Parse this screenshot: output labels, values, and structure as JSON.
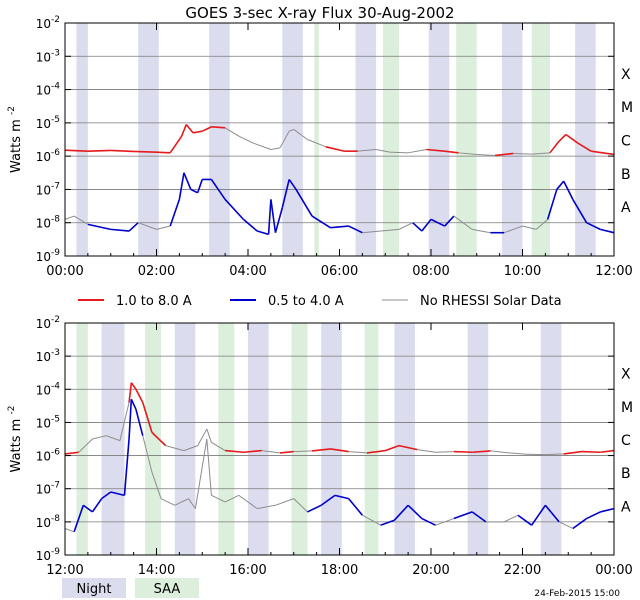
{
  "chart_data": {
    "type": "line",
    "title": "GOES 3-sec X-ray Flux   30-Aug-2002",
    "ylabel": "Watts m",
    "ylabel_exp": "-2",
    "yscale": "log",
    "ylim_exp": [
      -9,
      -2
    ],
    "y_tick_base": "10",
    "y_tick_exps": [
      "-9",
      "-8",
      "-7",
      "-6",
      "-5",
      "-4",
      "-3",
      "-2"
    ],
    "flare_classes": [
      {
        "label": "A",
        "exp": -8
      },
      {
        "label": "B",
        "exp": -7
      },
      {
        "label": "C",
        "exp": -6
      },
      {
        "label": "M",
        "exp": -5
      },
      {
        "label": "X",
        "exp": -4
      }
    ],
    "series_meta": [
      {
        "name": "1.0 to 8.0 A",
        "color": "#e41a1c"
      },
      {
        "name": "0.5 to 4.0 A",
        "color": "#0000cc"
      },
      {
        "name": "No RHESSI Solar Data",
        "color": "#8c8c8c"
      }
    ],
    "shading_legend": [
      {
        "name": "Night",
        "color": "#dcdcef"
      },
      {
        "name": "SAA",
        "color": "#dcefdc"
      }
    ],
    "footer_date": "24-Feb-2015 15:00",
    "panels": [
      {
        "id": "top",
        "xlim_h": [
          0,
          12
        ],
        "x_ticks": [
          "00:00",
          "02:00",
          "04:00",
          "06:00",
          "08:00",
          "10:00",
          "12:00"
        ],
        "night": [
          [
            0.25,
            0.5
          ],
          [
            1.6,
            2.05
          ],
          [
            3.15,
            3.6
          ],
          [
            4.75,
            5.2
          ],
          [
            6.35,
            6.8
          ],
          [
            7.95,
            8.4
          ],
          [
            9.55,
            10.0
          ],
          [
            11.15,
            11.6
          ]
        ],
        "saa": [
          [
            5.45,
            5.55
          ],
          [
            6.95,
            7.3
          ],
          [
            8.55,
            9.0
          ],
          [
            10.2,
            10.6
          ]
        ],
        "long": [
          [
            0,
            -5.82,
            "r"
          ],
          [
            0.5,
            -5.85,
            "r"
          ],
          [
            1.0,
            -5.83,
            "r"
          ],
          [
            1.5,
            -5.86,
            "r"
          ],
          [
            2.0,
            -5.88,
            "r"
          ],
          [
            2.3,
            -5.9,
            "r"
          ],
          [
            2.55,
            -5.4,
            "r"
          ],
          [
            2.65,
            -5.05,
            "r"
          ],
          [
            2.8,
            -5.3,
            "r"
          ],
          [
            3.0,
            -5.25,
            "r"
          ],
          [
            3.2,
            -5.12,
            "r"
          ],
          [
            3.5,
            -5.15,
            "g"
          ],
          [
            3.8,
            -5.4,
            "g"
          ],
          [
            4.1,
            -5.6,
            "g"
          ],
          [
            4.5,
            -5.8,
            "g"
          ],
          [
            4.7,
            -5.75,
            "g"
          ],
          [
            4.9,
            -5.25,
            "g"
          ],
          [
            5.0,
            -5.2,
            "g"
          ],
          [
            5.3,
            -5.5,
            "g"
          ],
          [
            5.7,
            -5.72,
            "r"
          ],
          [
            6.1,
            -5.85,
            "r"
          ],
          [
            6.4,
            -5.85,
            "g"
          ],
          [
            6.8,
            -5.8,
            "g"
          ],
          [
            7.1,
            -5.88,
            "g"
          ],
          [
            7.5,
            -5.9,
            "g"
          ],
          [
            7.9,
            -5.8,
            "r"
          ],
          [
            8.3,
            -5.85,
            "r"
          ],
          [
            8.6,
            -5.9,
            "g"
          ],
          [
            9.0,
            -5.95,
            "g"
          ],
          [
            9.4,
            -5.98,
            "r"
          ],
          [
            9.8,
            -5.92,
            "g"
          ],
          [
            10.2,
            -5.94,
            "g"
          ],
          [
            10.6,
            -5.9,
            "r"
          ],
          [
            10.8,
            -5.55,
            "r"
          ],
          [
            10.95,
            -5.35,
            "r"
          ],
          [
            11.2,
            -5.6,
            "r"
          ],
          [
            11.5,
            -5.85,
            "r"
          ],
          [
            12.0,
            -5.95,
            "r"
          ]
        ],
        "short": [
          [
            0,
            -7.9,
            "g"
          ],
          [
            0.2,
            -7.8,
            "g"
          ],
          [
            0.5,
            -8.05,
            "b"
          ],
          [
            1.0,
            -8.2,
            "b"
          ],
          [
            1.4,
            -8.25,
            "b"
          ],
          [
            1.6,
            -8.0,
            "g"
          ],
          [
            2.0,
            -8.2,
            "g"
          ],
          [
            2.3,
            -8.1,
            "b"
          ],
          [
            2.5,
            -7.3,
            "b"
          ],
          [
            2.6,
            -6.5,
            "b"
          ],
          [
            2.75,
            -7.0,
            "b"
          ],
          [
            2.9,
            -7.1,
            "b"
          ],
          [
            3.0,
            -6.7,
            "b"
          ],
          [
            3.2,
            -6.7,
            "b"
          ],
          [
            3.5,
            -7.3,
            "b"
          ],
          [
            3.9,
            -7.9,
            "b"
          ],
          [
            4.2,
            -8.25,
            "b"
          ],
          [
            4.45,
            -8.35,
            "b"
          ],
          [
            4.5,
            -7.3,
            "b"
          ],
          [
            4.6,
            -8.3,
            "b"
          ],
          [
            4.75,
            -7.55,
            "b"
          ],
          [
            4.9,
            -6.7,
            "b"
          ],
          [
            5.05,
            -7.0,
            "b"
          ],
          [
            5.4,
            -7.8,
            "b"
          ],
          [
            5.8,
            -8.15,
            "b"
          ],
          [
            6.2,
            -8.1,
            "b"
          ],
          [
            6.5,
            -8.3,
            "g"
          ],
          [
            6.9,
            -8.25,
            "g"
          ],
          [
            7.3,
            -8.2,
            "g"
          ],
          [
            7.6,
            -8.0,
            "b"
          ],
          [
            7.8,
            -8.25,
            "b"
          ],
          [
            8.0,
            -7.9,
            "b"
          ],
          [
            8.3,
            -8.1,
            "b"
          ],
          [
            8.5,
            -7.8,
            "g"
          ],
          [
            8.9,
            -8.2,
            "g"
          ],
          [
            9.3,
            -8.3,
            "b"
          ],
          [
            9.6,
            -8.3,
            "g"
          ],
          [
            10.0,
            -8.1,
            "g"
          ],
          [
            10.3,
            -8.2,
            "g"
          ],
          [
            10.55,
            -7.9,
            "b"
          ],
          [
            10.75,
            -7.0,
            "b"
          ],
          [
            10.9,
            -6.75,
            "b"
          ],
          [
            11.1,
            -7.3,
            "b"
          ],
          [
            11.4,
            -8.0,
            "b"
          ],
          [
            11.7,
            -8.2,
            "b"
          ],
          [
            12.0,
            -8.3,
            "b"
          ]
        ]
      },
      {
        "id": "bottom",
        "xlim_h": [
          12,
          24
        ],
        "x_ticks": [
          "12:00",
          "14:00",
          "16:00",
          "18:00",
          "20:00",
          "22:00",
          "00:00"
        ],
        "night": [
          [
            12.8,
            13.3
          ],
          [
            14.4,
            14.85
          ],
          [
            16.0,
            16.45
          ],
          [
            17.6,
            18.05
          ],
          [
            19.2,
            19.65
          ],
          [
            20.8,
            21.25
          ],
          [
            22.4,
            22.85
          ]
        ],
        "saa": [
          [
            12.25,
            12.5
          ],
          [
            13.75,
            14.1
          ],
          [
            15.35,
            15.7
          ],
          [
            16.95,
            17.3
          ],
          [
            18.55,
            18.85
          ]
        ],
        "long": [
          [
            12.0,
            -5.95,
            "r"
          ],
          [
            12.3,
            -5.9,
            "g"
          ],
          [
            12.6,
            -5.5,
            "g"
          ],
          [
            12.9,
            -5.4,
            "g"
          ],
          [
            13.2,
            -5.55,
            "g"
          ],
          [
            13.4,
            -4.4,
            "r"
          ],
          [
            13.45,
            -3.8,
            "r"
          ],
          [
            13.55,
            -4.0,
            "r"
          ],
          [
            13.7,
            -4.4,
            "r"
          ],
          [
            13.9,
            -5.3,
            "r"
          ],
          [
            14.2,
            -5.7,
            "g"
          ],
          [
            14.6,
            -5.85,
            "g"
          ],
          [
            14.9,
            -5.7,
            "g"
          ],
          [
            15.1,
            -5.2,
            "g"
          ],
          [
            15.2,
            -5.6,
            "g"
          ],
          [
            15.5,
            -5.85,
            "r"
          ],
          [
            15.9,
            -5.9,
            "r"
          ],
          [
            16.3,
            -5.85,
            "g"
          ],
          [
            16.7,
            -5.92,
            "r"
          ],
          [
            17.0,
            -5.88,
            "g"
          ],
          [
            17.4,
            -5.86,
            "r"
          ],
          [
            17.8,
            -5.8,
            "r"
          ],
          [
            18.2,
            -5.88,
            "g"
          ],
          [
            18.6,
            -5.92,
            "r"
          ],
          [
            19.0,
            -5.85,
            "r"
          ],
          [
            19.3,
            -5.7,
            "r"
          ],
          [
            19.7,
            -5.82,
            "g"
          ],
          [
            20.1,
            -5.9,
            "g"
          ],
          [
            20.5,
            -5.88,
            "r"
          ],
          [
            20.9,
            -5.9,
            "r"
          ],
          [
            21.3,
            -5.86,
            "g"
          ],
          [
            21.7,
            -5.92,
            "g"
          ],
          [
            22.1,
            -5.96,
            "g"
          ],
          [
            22.5,
            -5.97,
            "g"
          ],
          [
            22.9,
            -5.95,
            "r"
          ],
          [
            23.3,
            -5.88,
            "r"
          ],
          [
            23.7,
            -5.9,
            "r"
          ],
          [
            24.0,
            -5.85,
            "r"
          ]
        ],
        "short": [
          [
            12.0,
            -8.2,
            "g"
          ],
          [
            12.2,
            -8.3,
            "b"
          ],
          [
            12.4,
            -7.5,
            "b"
          ],
          [
            12.6,
            -7.7,
            "b"
          ],
          [
            12.8,
            -7.3,
            "b"
          ],
          [
            13.0,
            -7.1,
            "b"
          ],
          [
            13.3,
            -7.2,
            "b"
          ],
          [
            13.4,
            -5.5,
            "b"
          ],
          [
            13.45,
            -4.3,
            "b"
          ],
          [
            13.55,
            -4.6,
            "b"
          ],
          [
            13.7,
            -5.4,
            "g"
          ],
          [
            13.9,
            -6.5,
            "g"
          ],
          [
            14.1,
            -7.3,
            "g"
          ],
          [
            14.4,
            -7.5,
            "g"
          ],
          [
            14.7,
            -7.3,
            "g"
          ],
          [
            14.85,
            -7.6,
            "g"
          ],
          [
            15.1,
            -5.5,
            "g"
          ],
          [
            15.2,
            -7.2,
            "g"
          ],
          [
            15.5,
            -7.4,
            "g"
          ],
          [
            15.8,
            -7.2,
            "g"
          ],
          [
            16.2,
            -7.6,
            "g"
          ],
          [
            16.6,
            -7.5,
            "g"
          ],
          [
            17.0,
            -7.3,
            "g"
          ],
          [
            17.3,
            -7.7,
            "b"
          ],
          [
            17.6,
            -7.5,
            "b"
          ],
          [
            17.9,
            -7.2,
            "b"
          ],
          [
            18.2,
            -7.3,
            "b"
          ],
          [
            18.5,
            -7.8,
            "g"
          ],
          [
            18.9,
            -8.1,
            "b"
          ],
          [
            19.2,
            -7.95,
            "b"
          ],
          [
            19.5,
            -7.5,
            "b"
          ],
          [
            19.8,
            -7.9,
            "b"
          ],
          [
            20.1,
            -8.1,
            "g"
          ],
          [
            20.5,
            -7.9,
            "b"
          ],
          [
            20.9,
            -7.7,
            "b"
          ],
          [
            21.2,
            -8.0,
            "g"
          ],
          [
            21.6,
            -8.0,
            "g"
          ],
          [
            21.9,
            -7.8,
            "b"
          ],
          [
            22.2,
            -8.1,
            "b"
          ],
          [
            22.5,
            -7.5,
            "b"
          ],
          [
            22.8,
            -8.0,
            "g"
          ],
          [
            23.1,
            -8.2,
            "b"
          ],
          [
            23.4,
            -7.9,
            "b"
          ],
          [
            23.7,
            -7.7,
            "b"
          ],
          [
            24.0,
            -7.6,
            "b"
          ]
        ]
      }
    ]
  }
}
